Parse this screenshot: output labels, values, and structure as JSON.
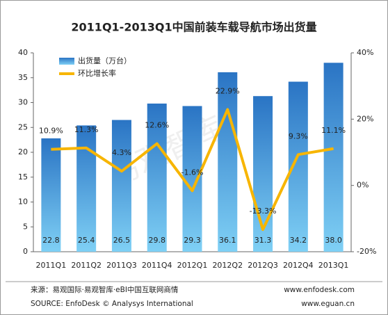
{
  "chart_data": {
    "type": "bar_line",
    "title": "2011Q1-2013Q1中国前装车载导航市场出货量",
    "categories": [
      "2011Q1",
      "2011Q2",
      "2011Q3",
      "2011Q4",
      "2012Q1",
      "2012Q2",
      "2012Q3",
      "2012Q4",
      "2013Q1"
    ],
    "series": [
      {
        "name": "出货量（万台）",
        "type": "bar",
        "color": "#2a74c4",
        "values": [
          22.8,
          25.4,
          26.5,
          29.8,
          29.3,
          36.1,
          31.3,
          34.2,
          38.0
        ],
        "value_labels": [
          "22.8",
          "25.4",
          "26.5",
          "29.8",
          "29.3",
          "36.1",
          "31.3",
          "34.2",
          "38.0"
        ]
      },
      {
        "name": "环比增长率",
        "type": "line",
        "axis": "y2",
        "color": "#f7b500",
        "values": [
          10.9,
          11.3,
          4.3,
          12.6,
          -1.6,
          22.9,
          -13.3,
          9.3,
          11.1
        ],
        "value_labels": [
          "10.9%",
          "11.3%",
          "4.3%",
          "12.6%",
          "-1.6%",
          "22.9%",
          "-13.3%",
          "9.3%",
          "11.1%"
        ]
      }
    ],
    "ylim": [
      0,
      40
    ],
    "yticks": [
      0,
      5,
      10,
      15,
      20,
      25,
      30,
      35,
      40
    ],
    "y2lim": [
      -20,
      40
    ],
    "y2ticks": [
      {
        "value": -20,
        "label": "-20%"
      },
      {
        "value": 0,
        "label": "0%"
      },
      {
        "value": 20,
        "label": "20%"
      },
      {
        "value": 40,
        "label": "40%"
      }
    ],
    "legend": "top-left",
    "watermark": "易观智库",
    "source": "来源：易观国际·易观智库·eBI中国互联网商情",
    "source_en": "SOURCE: EnfoDesk © Analysys International",
    "url1": "www.enfodesk.com",
    "url2": "www.eguan.cn"
  }
}
